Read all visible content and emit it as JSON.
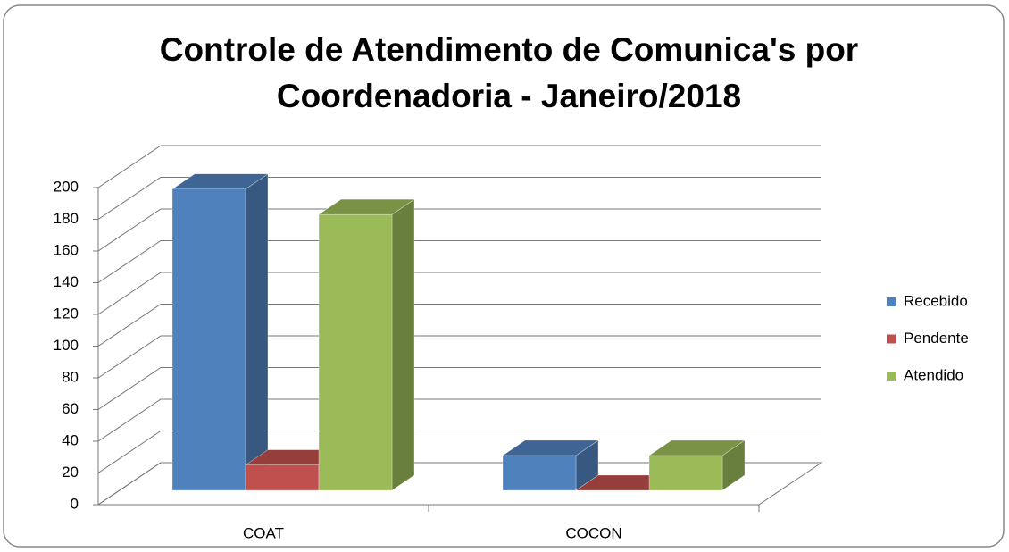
{
  "chart_data": {
    "type": "bar3d",
    "title": "Controle de Atendimento de Comunica's por Coordenadoria - Janeiro/2018",
    "categories": [
      "COAT",
      "COCON"
    ],
    "series": [
      {
        "name": "Recebido",
        "color": "#4f81bd",
        "values": [
          190,
          22
        ]
      },
      {
        "name": "Pendente",
        "color": "#c0504d",
        "values": [
          16,
          0
        ]
      },
      {
        "name": "Atendido",
        "color": "#9bbb59",
        "values": [
          174,
          22
        ]
      }
    ],
    "ylim": [
      0,
      200
    ],
    "yticks": [
      0,
      20,
      40,
      60,
      80,
      100,
      120,
      140,
      160,
      180,
      200
    ],
    "grid": true,
    "legend": "right"
  }
}
